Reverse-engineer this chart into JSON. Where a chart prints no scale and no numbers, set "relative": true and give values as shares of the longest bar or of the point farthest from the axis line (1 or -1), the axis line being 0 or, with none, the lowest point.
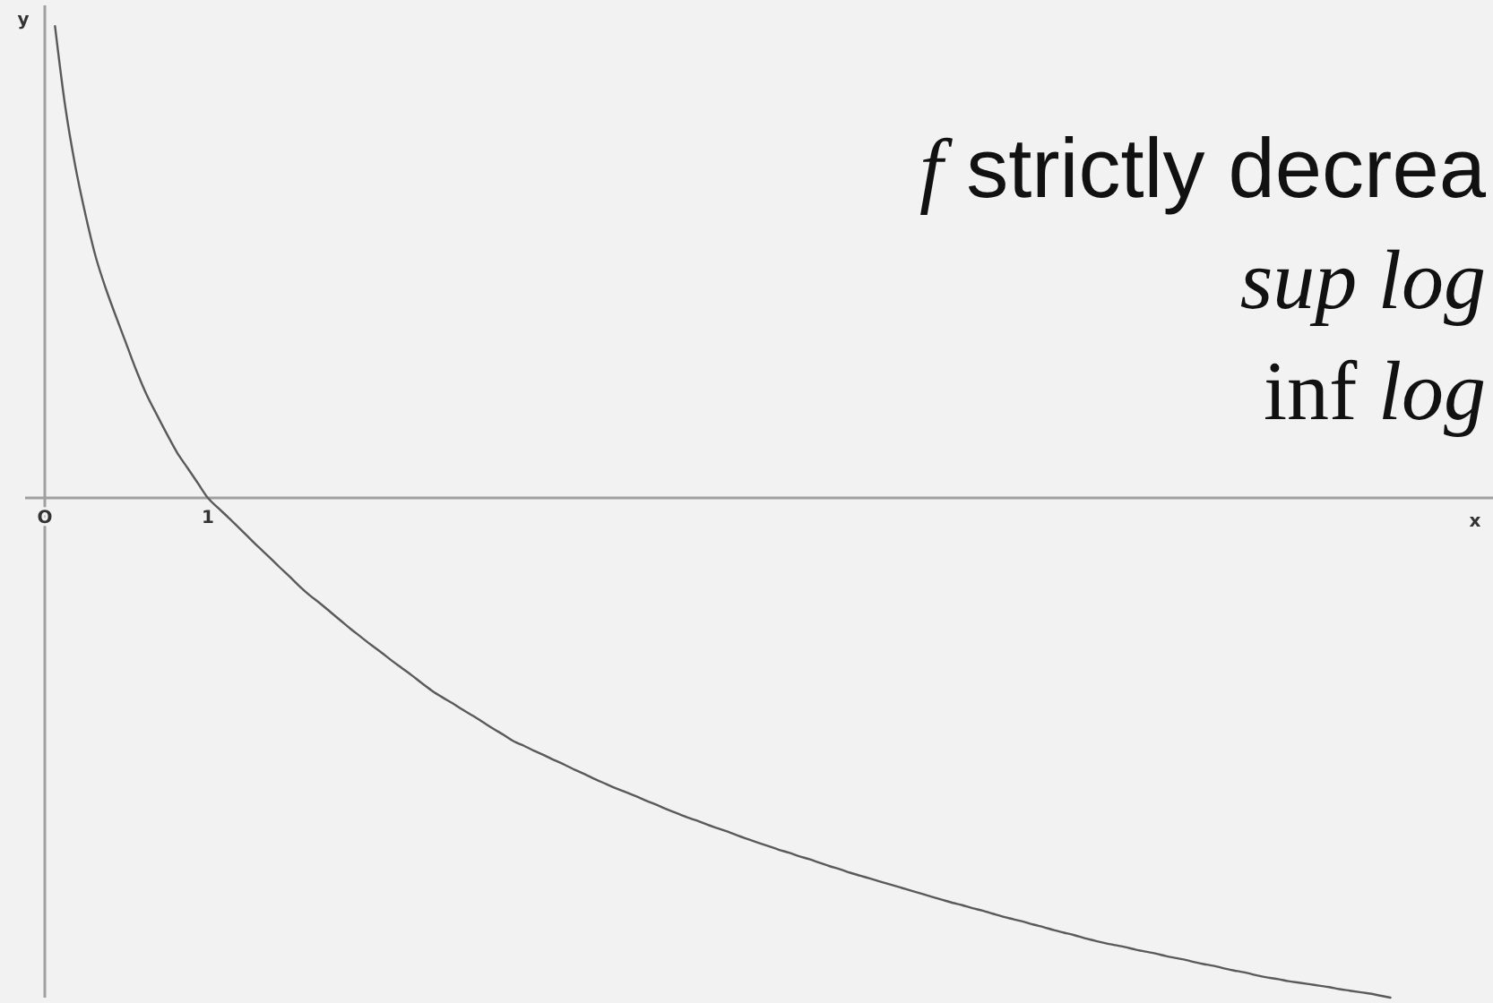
{
  "chart_data": {
    "type": "line",
    "relative": true,
    "xlabel": "x",
    "ylabel": "y",
    "categories": [
      "O",
      null,
      null,
      null,
      null,
      null,
      null,
      null,
      null,
      null,
      null,
      null,
      null,
      null,
      null,
      null,
      "1",
      null,
      null,
      null,
      null,
      null,
      null,
      null,
      null,
      null,
      null,
      null,
      null,
      null,
      null,
      null,
      null,
      null,
      null,
      null,
      null,
      null,
      null,
      null,
      null,
      null,
      null,
      null,
      null,
      null,
      null,
      null,
      null,
      null,
      null,
      null,
      null,
      null,
      null,
      null,
      null,
      null,
      null,
      null,
      null,
      null,
      null,
      null,
      null,
      null,
      null,
      null,
      null,
      null,
      null,
      null,
      null,
      null,
      null,
      null,
      null,
      null,
      null,
      null,
      null,
      null,
      null,
      null,
      null,
      null,
      null,
      null,
      null,
      null,
      null,
      null,
      null,
      null,
      null,
      null,
      null,
      null,
      null,
      null,
      null,
      null,
      null,
      null,
      null,
      null,
      null,
      null,
      null,
      null,
      null,
      null,
      null,
      null,
      null,
      null,
      null,
      null,
      null,
      null,
      null,
      null,
      null,
      null,
      null,
      null,
      null,
      null,
      null,
      null,
      null,
      null,
      null
    ],
    "values": [
      null,
      0.944,
      0.784,
      0.663,
      0.566,
      0.482,
      0.418,
      0.362,
      0.308,
      0.254,
      0.206,
      0.166,
      0.127,
      0.09,
      0.06,
      0.03,
      0,
      -0.02,
      -0.039,
      -0.059,
      -0.079,
      -0.099,
      -0.118,
      -0.138,
      -0.157,
      -0.177,
      -0.195,
      -0.211,
      -0.228,
      -0.245,
      -0.262,
      -0.278,
      -0.294,
      -0.309,
      -0.325,
      -0.34,
      -0.355,
      -0.371,
      -0.386,
      -0.399,
      -0.411,
      -0.424,
      -0.436,
      -0.449,
      -0.462,
      -0.474,
      -0.487,
      -0.496,
      -0.506,
      -0.515,
      -0.525,
      -0.534,
      -0.544,
      -0.553,
      -0.563,
      -0.572,
      -0.581,
      -0.589,
      -0.597,
      -0.606,
      -0.614,
      -0.623,
      -0.631,
      -0.639,
      -0.646,
      -0.654,
      -0.661,
      -0.668,
      -0.676,
      -0.683,
      -0.69,
      -0.697,
      -0.704,
      -0.71,
      -0.717,
      -0.723,
      -0.73,
      -0.737,
      -0.743,
      -0.75,
      -0.756,
      -0.762,
      -0.768,
      -0.774,
      -0.78,
      -0.786,
      -0.792,
      -0.798,
      -0.804,
      -0.81,
      -0.815,
      -0.821,
      -0.826,
      -0.832,
      -0.838,
      -0.843,
      -0.848,
      -0.854,
      -0.859,
      -0.865,
      -0.87,
      -0.875,
      -0.881,
      -0.886,
      -0.891,
      -0.895,
      -0.899,
      -0.904,
      -0.908,
      -0.912,
      -0.917,
      -0.921,
      -0.925,
      -0.93,
      -0.934,
      -0.938,
      -0.943,
      -0.947,
      -0.951,
      -0.956,
      -0.96,
      -0.963,
      -0.967,
      -0.97,
      -0.973,
      -0.976,
      -0.979,
      -0.983,
      -0.986,
      -0.989,
      -0.992,
      -0.996,
      -1
    ],
    "color": "#5a5a5a",
    "annotations": [
      "f strictly decrea",
      "sup log",
      "inf log"
    ]
  }
}
